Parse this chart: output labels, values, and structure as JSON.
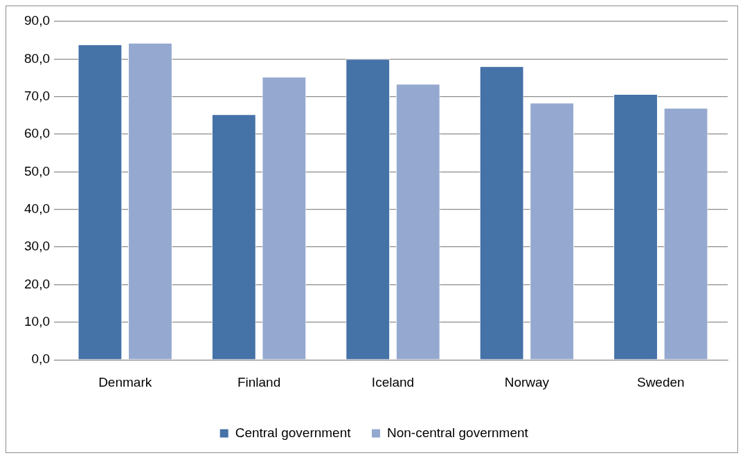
{
  "chart_data": {
    "type": "bar",
    "categories": [
      "Denmark",
      "Finland",
      "Iceland",
      "Norway",
      "Sweden"
    ],
    "series": [
      {
        "name": "Central government",
        "color": "#4572a7",
        "values": [
          83.9,
          65.3,
          80.0,
          78.1,
          70.7
        ]
      },
      {
        "name": "Non-central government",
        "color": "#95a9d0",
        "values": [
          84.3,
          75.3,
          73.4,
          68.4,
          67.0
        ]
      }
    ],
    "ylim": [
      0,
      90
    ],
    "yticks": [
      {
        "value": 0,
        "label": "0,0"
      },
      {
        "value": 10,
        "label": "10,0"
      },
      {
        "value": 20,
        "label": "20,0"
      },
      {
        "value": 30,
        "label": "30,0"
      },
      {
        "value": 40,
        "label": "40,0"
      },
      {
        "value": 50,
        "label": "50,0"
      },
      {
        "value": 60,
        "label": "60,0"
      },
      {
        "value": 70,
        "label": "70,0"
      },
      {
        "value": 80,
        "label": "80,0"
      },
      {
        "value": 90,
        "label": "90,0"
      }
    ],
    "grid": "y",
    "legend": "bottom"
  }
}
